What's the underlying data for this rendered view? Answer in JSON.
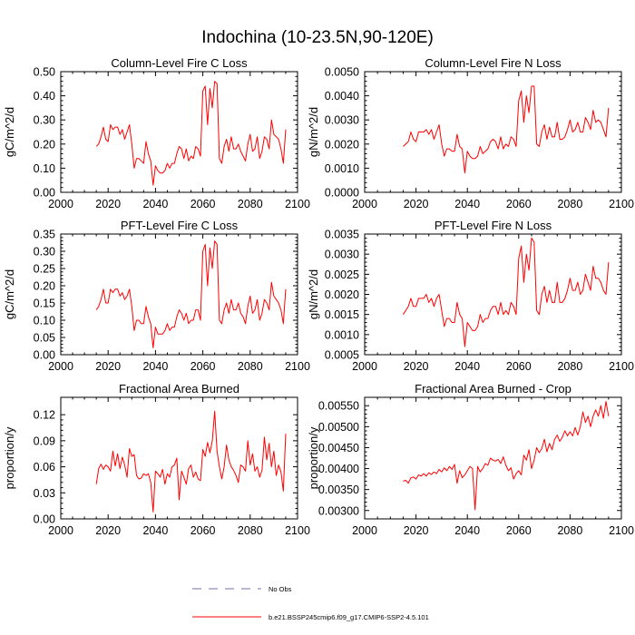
{
  "main_title": "Indochina (10-23.5N,90-120E)",
  "colors": {
    "model": "#ff0000",
    "obs": "#7070a0",
    "axis": "#000000"
  },
  "legend": {
    "entries": [
      {
        "label": "No Obs",
        "style": "dashed",
        "color": "#7070a0"
      },
      {
        "label": "b.e21.BSSP245cmip6.f09_g17.CMIP6-SSP2-4.5.101",
        "style": "solid",
        "color": "#ff0000"
      }
    ]
  },
  "chart_data": [
    {
      "type": "line",
      "title": "Column-Level Fire C Loss",
      "ylabel": "gC/m^2/d",
      "xlim": [
        2000,
        2100
      ],
      "ylim": [
        0,
        0.5
      ],
      "xticks": [
        2000,
        2020,
        2040,
        2060,
        2080,
        2100
      ],
      "xtick_labels": [
        "2000",
        "2020",
        "2040",
        "2060",
        "2080",
        "2100"
      ],
      "yticks": [
        0,
        0.1,
        0.2,
        0.3,
        0.4,
        0.5
      ],
      "ytick_labels": [
        "0.00",
        "0.10",
        "0.20",
        "0.30",
        "0.40",
        "0.50"
      ],
      "x_start": 2015,
      "series": [
        {
          "name": "b.e21.BSSP245cmip6.f09_g17.CMIP6-SSP2-4.5.101",
          "values": [
            0.19,
            0.2,
            0.23,
            0.27,
            0.22,
            0.21,
            0.28,
            0.26,
            0.27,
            0.27,
            0.24,
            0.26,
            0.22,
            0.25,
            0.28,
            0.2,
            0.1,
            0.14,
            0.14,
            0.13,
            0.12,
            0.21,
            0.16,
            0.13,
            0.03,
            0.11,
            0.09,
            0.08,
            0.08,
            0.09,
            0.12,
            0.1,
            0.12,
            0.12,
            0.16,
            0.19,
            0.18,
            0.14,
            0.18,
            0.13,
            0.15,
            0.14,
            0.19,
            0.18,
            0.15,
            0.42,
            0.44,
            0.28,
            0.43,
            0.35,
            0.46,
            0.45,
            0.14,
            0.12,
            0.19,
            0.22,
            0.17,
            0.23,
            0.18,
            0.18,
            0.2,
            0.17,
            0.15,
            0.13,
            0.2,
            0.24,
            0.17,
            0.18,
            0.23,
            0.14,
            0.17,
            0.23,
            0.22,
            0.18,
            0.3,
            0.24,
            0.23,
            0.22,
            0.18,
            0.12,
            0.26
          ]
        }
      ]
    },
    {
      "type": "line",
      "title": "Column-Level Fire N Loss",
      "ylabel": "gN/m^2/d",
      "xlim": [
        2000,
        2100
      ],
      "ylim": [
        0,
        0.005
      ],
      "xticks": [
        2000,
        2020,
        2040,
        2060,
        2080,
        2100
      ],
      "xtick_labels": [
        "2000",
        "2020",
        "2040",
        "2060",
        "2080",
        "2100"
      ],
      "yticks": [
        0,
        0.001,
        0.002,
        0.003,
        0.004,
        0.005
      ],
      "ytick_labels": [
        "0.0000",
        "0.0010",
        "0.0020",
        "0.0030",
        "0.0040",
        "0.0050"
      ],
      "x_start": 2015,
      "series": [
        {
          "name": "b.e21.BSSP245cmip6.f09_g17.CMIP6-SSP2-4.5.101",
          "values": [
            0.0019,
            0.002,
            0.0021,
            0.0025,
            0.0022,
            0.0021,
            0.0025,
            0.0025,
            0.0025,
            0.0026,
            0.0024,
            0.0026,
            0.0022,
            0.0025,
            0.0028,
            0.002,
            0.0015,
            0.0018,
            0.0018,
            0.0017,
            0.0017,
            0.0024,
            0.0019,
            0.0018,
            0.0008,
            0.0017,
            0.0015,
            0.0014,
            0.0014,
            0.0015,
            0.0019,
            0.0016,
            0.0017,
            0.0018,
            0.0021,
            0.0022,
            0.0021,
            0.0018,
            0.0023,
            0.0018,
            0.002,
            0.0019,
            0.0023,
            0.0022,
            0.0019,
            0.0038,
            0.0042,
            0.0029,
            0.004,
            0.0033,
            0.0044,
            0.0044,
            0.002,
            0.0019,
            0.0025,
            0.0028,
            0.0022,
            0.0027,
            0.0023,
            0.0023,
            0.0029,
            0.0022,
            0.0022,
            0.0023,
            0.0026,
            0.003,
            0.0025,
            0.0026,
            0.0029,
            0.0025,
            0.0025,
            0.0031,
            0.0029,
            0.0026,
            0.0034,
            0.0029,
            0.003,
            0.0029,
            0.0026,
            0.0023,
            0.0035
          ]
        }
      ]
    },
    {
      "type": "line",
      "title": "PFT-Level Fire C Loss",
      "ylabel": "gC/m^2/d",
      "xlim": [
        2000,
        2100
      ],
      "ylim": [
        0,
        0.35
      ],
      "xticks": [
        2000,
        2020,
        2040,
        2060,
        2080,
        2100
      ],
      "xtick_labels": [
        "2000",
        "2020",
        "2040",
        "2060",
        "2080",
        "2100"
      ],
      "yticks": [
        0,
        0.05,
        0.1,
        0.15,
        0.2,
        0.25,
        0.3,
        0.35
      ],
      "ytick_labels": [
        "0.00",
        "0.05",
        "0.10",
        "0.15",
        "0.20",
        "0.25",
        "0.30",
        "0.35"
      ],
      "x_start": 2015,
      "series": [
        {
          "name": "b.e21.BSSP245cmip6.f09_g17.CMIP6-SSP2-4.5.101",
          "values": [
            0.13,
            0.14,
            0.16,
            0.19,
            0.15,
            0.15,
            0.19,
            0.18,
            0.19,
            0.19,
            0.17,
            0.18,
            0.16,
            0.17,
            0.19,
            0.14,
            0.07,
            0.1,
            0.1,
            0.09,
            0.09,
            0.14,
            0.11,
            0.09,
            0.02,
            0.08,
            0.06,
            0.06,
            0.06,
            0.07,
            0.09,
            0.07,
            0.08,
            0.08,
            0.11,
            0.13,
            0.12,
            0.1,
            0.12,
            0.09,
            0.1,
            0.1,
            0.13,
            0.13,
            0.1,
            0.3,
            0.32,
            0.2,
            0.31,
            0.25,
            0.33,
            0.32,
            0.1,
            0.09,
            0.13,
            0.15,
            0.12,
            0.16,
            0.13,
            0.13,
            0.15,
            0.12,
            0.11,
            0.09,
            0.14,
            0.17,
            0.12,
            0.13,
            0.16,
            0.1,
            0.12,
            0.16,
            0.15,
            0.13,
            0.21,
            0.17,
            0.16,
            0.15,
            0.13,
            0.09,
            0.19
          ]
        }
      ]
    },
    {
      "type": "line",
      "title": "PFT-Level Fire N Loss",
      "ylabel": "gN/m^2/d",
      "xlim": [
        2000,
        2100
      ],
      "ylim": [
        0.0005,
        0.0035
      ],
      "xticks": [
        2000,
        2020,
        2040,
        2060,
        2080,
        2100
      ],
      "xtick_labels": [
        "2000",
        "2020",
        "2040",
        "2060",
        "2080",
        "2100"
      ],
      "yticks": [
        0.0005,
        0.001,
        0.0015,
        0.002,
        0.0025,
        0.003,
        0.0035
      ],
      "ytick_labels": [
        "0.0005",
        "0.0010",
        "0.0015",
        "0.0020",
        "0.0025",
        "0.0030",
        "0.0035"
      ],
      "x_start": 2015,
      "series": [
        {
          "name": "b.e21.BSSP245cmip6.f09_g17.CMIP6-SSP2-4.5.101",
          "values": [
            0.0015,
            0.0016,
            0.0017,
            0.0019,
            0.0017,
            0.0017,
            0.0019,
            0.0019,
            0.0019,
            0.002,
            0.0018,
            0.0019,
            0.0017,
            0.0019,
            0.002,
            0.0016,
            0.0012,
            0.0014,
            0.0014,
            0.0013,
            0.0013,
            0.0018,
            0.0015,
            0.0014,
            0.0007,
            0.0013,
            0.0012,
            0.0011,
            0.0011,
            0.0012,
            0.0015,
            0.0013,
            0.0014,
            0.0014,
            0.0016,
            0.0017,
            0.0017,
            0.0015,
            0.0018,
            0.0015,
            0.0016,
            0.0015,
            0.0018,
            0.0017,
            0.0015,
            0.0029,
            0.0032,
            0.0023,
            0.003,
            0.0026,
            0.0034,
            0.0033,
            0.0016,
            0.0015,
            0.002,
            0.0022,
            0.0018,
            0.0021,
            0.0018,
            0.0018,
            0.0023,
            0.0018,
            0.0018,
            0.0019,
            0.0021,
            0.0024,
            0.0021,
            0.0021,
            0.0023,
            0.002,
            0.0021,
            0.0025,
            0.0023,
            0.0021,
            0.0027,
            0.0024,
            0.0024,
            0.0023,
            0.0021,
            0.002,
            0.0028
          ]
        }
      ]
    },
    {
      "type": "line",
      "title": "Fractional Area Burned",
      "ylabel": "proportion/y",
      "xlim": [
        2000,
        2100
      ],
      "ylim": [
        0,
        0.14
      ],
      "xticks": [
        2000,
        2020,
        2040,
        2060,
        2080,
        2100
      ],
      "xtick_labels": [
        "2000",
        "2020",
        "2040",
        "2060",
        "2080",
        "2100"
      ],
      "yticks": [
        0,
        0.03,
        0.06,
        0.09,
        0.12
      ],
      "ytick_labels": [
        "0.00",
        "0.03",
        "0.06",
        "0.09",
        "0.12"
      ],
      "x_start": 2015,
      "series": [
        {
          "name": "b.e21.BSSP245cmip6.f09_g17.CMIP6-SSP2-4.5.101",
          "values": [
            0.04,
            0.058,
            0.063,
            0.057,
            0.062,
            0.06,
            0.055,
            0.078,
            0.061,
            0.075,
            0.058,
            0.071,
            0.062,
            0.048,
            0.081,
            0.072,
            0.074,
            0.05,
            0.046,
            0.047,
            0.052,
            0.05,
            0.052,
            0.042,
            0.008,
            0.055,
            0.052,
            0.048,
            0.057,
            0.04,
            0.052,
            0.048,
            0.06,
            0.062,
            0.07,
            0.022,
            0.055,
            0.048,
            0.04,
            0.058,
            0.062,
            0.048,
            0.054,
            0.046,
            0.044,
            0.08,
            0.072,
            0.088,
            0.076,
            0.09,
            0.124,
            0.078,
            0.06,
            0.046,
            0.06,
            0.085,
            0.068,
            0.06,
            0.056,
            0.05,
            0.042,
            0.062,
            0.06,
            0.055,
            0.09,
            0.062,
            0.075,
            0.055,
            0.06,
            0.048,
            0.056,
            0.094,
            0.068,
            0.087,
            0.06,
            0.078,
            0.05,
            0.062,
            0.054,
            0.032,
            0.098
          ]
        }
      ]
    },
    {
      "type": "line",
      "title": "Fractional Area Burned - Crop",
      "ylabel": "proportion/y",
      "xlim": [
        2000,
        2100
      ],
      "ylim": [
        0.0028,
        0.0057
      ],
      "xticks": [
        2000,
        2020,
        2040,
        2060,
        2080,
        2100
      ],
      "xtick_labels": [
        "2000",
        "2020",
        "2040",
        "2060",
        "2080",
        "2100"
      ],
      "yticks": [
        0.003,
        0.0035,
        0.004,
        0.0045,
        0.005,
        0.0055
      ],
      "ytick_labels": [
        "0.00300",
        "0.00350",
        "0.00400",
        "0.00450",
        "0.00500",
        "0.00550"
      ],
      "x_start": 2015,
      "series": [
        {
          "name": "b.e21.BSSP245cmip6.f09_g17.CMIP6-SSP2-4.5.101",
          "values": [
            0.0037,
            0.00372,
            0.00365,
            0.00378,
            0.0038,
            0.00375,
            0.00385,
            0.00382,
            0.00388,
            0.00382,
            0.0039,
            0.00386,
            0.00392,
            0.00388,
            0.00398,
            0.00392,
            0.00402,
            0.00395,
            0.00405,
            0.00398,
            0.0041,
            0.00365,
            0.00395,
            0.00378,
            0.00385,
            0.00395,
            0.00405,
            0.004,
            0.00302,
            0.00405,
            0.00392,
            0.004,
            0.00412,
            0.00408,
            0.00425,
            0.0042,
            0.00418,
            0.00422,
            0.00412,
            0.00428,
            0.00408,
            0.00395,
            0.00402,
            0.00375,
            0.00388,
            0.00395,
            0.00385,
            0.00432,
            0.0042,
            0.00445,
            0.004,
            0.0042,
            0.0045,
            0.00438,
            0.00448,
            0.0047,
            0.0044,
            0.0046,
            0.00445,
            0.0047,
            0.0048,
            0.00465,
            0.00475,
            0.0049,
            0.00478,
            0.00488,
            0.00478,
            0.00498,
            0.0048,
            0.005,
            0.00535,
            0.0051,
            0.00525,
            0.005,
            0.00525,
            0.0054,
            0.00525,
            0.0055,
            0.0052,
            0.0056,
            0.00525
          ]
        }
      ]
    }
  ]
}
